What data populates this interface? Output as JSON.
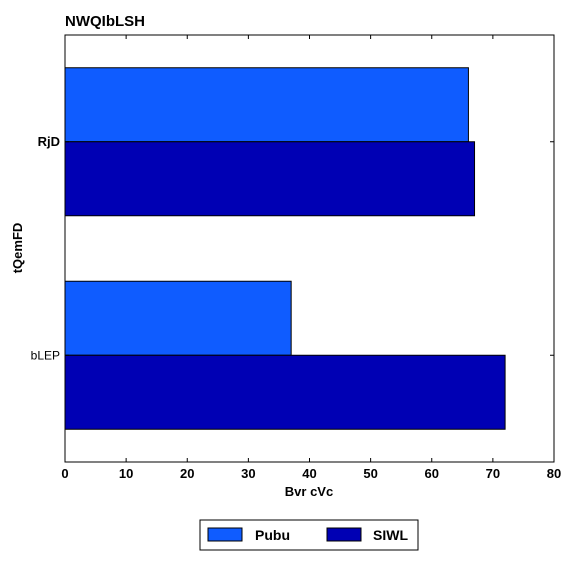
{
  "chart_data": {
    "type": "bar",
    "orientation": "horizontal",
    "title": "NWQIbLSH",
    "xlabel": "Bvr cVc",
    "ylabel": "tQemFD",
    "categories": [
      "bLEP",
      "RjD"
    ],
    "series": [
      {
        "name": "Pubu",
        "color": "#0f5cff",
        "values": [
          37,
          66
        ]
      },
      {
        "name": "SIWL",
        "color": "#0000b4",
        "values": [
          72,
          67
        ]
      }
    ],
    "xlim": [
      0,
      80
    ],
    "xticks": [
      0,
      10,
      20,
      30,
      40,
      50,
      60,
      70,
      80
    ],
    "grid": false,
    "legend_position": "bottom-center"
  }
}
